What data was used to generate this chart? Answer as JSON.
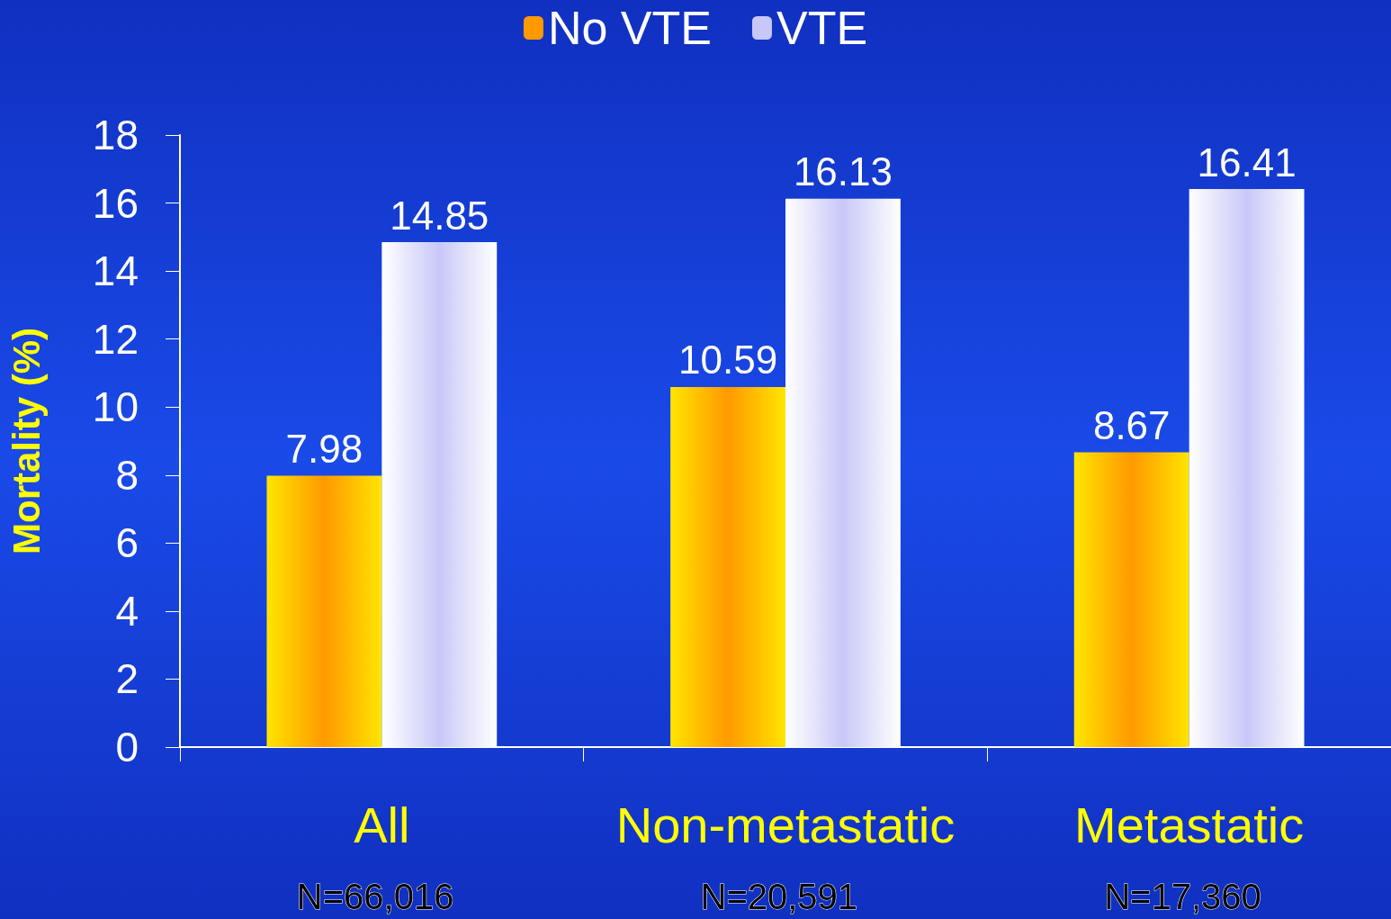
{
  "chart_data": {
    "type": "bar",
    "ylabel": "Mortality (%)",
    "categories": [
      "All",
      "Non-metastatic",
      "Metastatic"
    ],
    "series": [
      {
        "name": "No VTE",
        "color": "#ff9900",
        "values": [
          7.98,
          10.59,
          8.67
        ]
      },
      {
        "name": "VTE",
        "color": "#c8c8f8",
        "values": [
          14.85,
          16.13,
          16.41
        ]
      }
    ],
    "ylim": [
      0,
      18
    ],
    "yticks": [
      0,
      2,
      4,
      6,
      8,
      10,
      12,
      14,
      16,
      18
    ],
    "data_labels": true,
    "grid": false,
    "legend": "top",
    "annotations": [
      "N=66,016",
      "N=20,591",
      "N=17,360"
    ]
  }
}
